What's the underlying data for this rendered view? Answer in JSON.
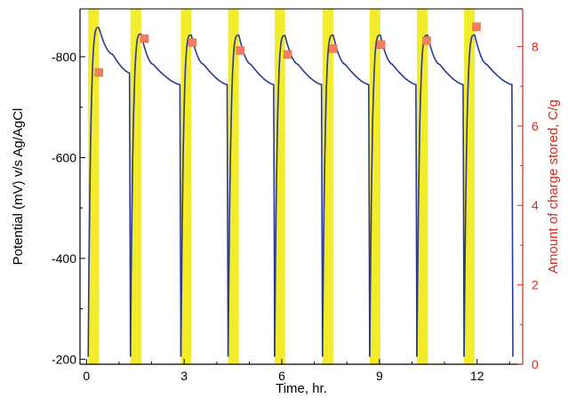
{
  "chart_data": {
    "type": "line",
    "title": "",
    "xlabel": "Time, hr.",
    "ylabel_left": "Potential (mV) v/s Ag/AgCl",
    "ylabel_right": "Amount of charge stored, C/g",
    "xlim": [
      -0.2,
      13.4
    ],
    "ylim_left": [
      -190,
      -895
    ],
    "ylim_right": [
      0,
      8.95
    ],
    "x_ticks": [
      0,
      3,
      6,
      9,
      12
    ],
    "y_left_ticks": [
      -200,
      -400,
      -600,
      -800
    ],
    "y_right_ticks": [
      0,
      2,
      4,
      6,
      8
    ],
    "grid": false,
    "legend": "none",
    "colors": {
      "potential_line": "#2b3990",
      "charge_markers": "#f08060",
      "charge_marker_edge": "#e06040",
      "charging_bands": "#f2ec2c",
      "right_axis": "#d8281c",
      "left_axis": "#000000"
    },
    "charging_periods": [
      [
        0.05,
        0.38
      ],
      [
        1.35,
        1.68
      ],
      [
        2.9,
        3.22
      ],
      [
        4.35,
        4.68
      ],
      [
        5.78,
        6.1
      ],
      [
        7.25,
        7.58
      ],
      [
        8.7,
        9.03
      ],
      [
        10.15,
        10.48
      ],
      [
        11.6,
        11.93
      ]
    ],
    "series": [
      {
        "axis": "left",
        "style": "line",
        "cycles": [
          {
            "start": 0.05,
            "rise_end": 0.38,
            "peak": -858,
            "knee": [
              0.8,
              -805
            ],
            "drop_start": 1.32,
            "drop_value": -768,
            "end": 1.35,
            "end_value": -205
          },
          {
            "start": 1.35,
            "rise_end": 1.68,
            "peak": -845,
            "knee": [
              2.05,
              -785
            ],
            "drop_start": 2.87,
            "drop_value": -745,
            "end": 2.9,
            "end_value": -205
          },
          {
            "start": 2.9,
            "rise_end": 3.22,
            "peak": -843,
            "knee": [
              3.6,
              -785
            ],
            "drop_start": 4.32,
            "drop_value": -745,
            "end": 4.35,
            "end_value": -205
          },
          {
            "start": 4.35,
            "rise_end": 4.68,
            "peak": -843,
            "knee": [
              5.05,
              -785
            ],
            "drop_start": 5.75,
            "drop_value": -745,
            "end": 5.78,
            "end_value": -205
          },
          {
            "start": 5.78,
            "rise_end": 6.1,
            "peak": -842,
            "knee": [
              6.5,
              -785
            ],
            "drop_start": 7.22,
            "drop_value": -745,
            "end": 7.25,
            "end_value": -205
          },
          {
            "start": 7.25,
            "rise_end": 7.58,
            "peak": -843,
            "knee": [
              7.95,
              -785
            ],
            "drop_start": 8.67,
            "drop_value": -745,
            "end": 8.7,
            "end_value": -205
          },
          {
            "start": 8.7,
            "rise_end": 9.03,
            "peak": -843,
            "knee": [
              9.4,
              -785
            ],
            "drop_start": 10.12,
            "drop_value": -745,
            "end": 10.15,
            "end_value": -205
          },
          {
            "start": 10.15,
            "rise_end": 10.48,
            "peak": -843,
            "knee": [
              10.85,
              -785
            ],
            "drop_start": 11.57,
            "drop_value": -745,
            "end": 11.6,
            "end_value": -205
          },
          {
            "start": 11.6,
            "rise_end": 11.93,
            "peak": -843,
            "knee": [
              12.3,
              -785
            ],
            "drop_start": 13.07,
            "drop_value": -745,
            "end": 13.1,
            "end_value": -205
          }
        ]
      },
      {
        "axis": "right",
        "style": "markers",
        "x": [
          0.38,
          1.78,
          3.25,
          4.72,
          6.18,
          7.58,
          9.05,
          10.45,
          11.98
        ],
        "y": [
          7.35,
          8.2,
          8.1,
          7.9,
          7.8,
          7.95,
          8.05,
          8.15,
          8.5
        ]
      }
    ]
  }
}
